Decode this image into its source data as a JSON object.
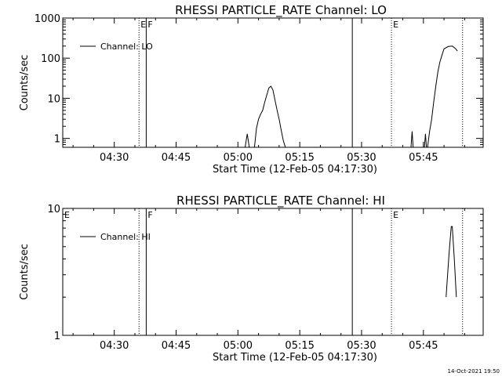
{
  "footer": {
    "timestamp": "14-Oct-2021 19:50"
  },
  "chart_data": [
    {
      "type": "line",
      "title": "RHESSI PARTICLE_RATE Channel: LO",
      "xlabel": "Start Time (12-Feb-05 04:17:30)",
      "ylabel": "Counts/sec",
      "yscale": "log",
      "xlim": [
        "04:17:30",
        "05:59:30"
      ],
      "ylim": [
        0.6,
        1000
      ],
      "xticks": [
        "04:30",
        "04:45",
        "05:00",
        "05:15",
        "05:30",
        "05:45"
      ],
      "yticks": [
        {
          "value": 1,
          "label": "1"
        },
        {
          "value": 10,
          "label": "10"
        },
        {
          "value": 100,
          "label": "100"
        },
        {
          "value": 1000,
          "label": "1000"
        }
      ],
      "legend": {
        "position": "top-left",
        "entries": [
          "Channel: LO"
        ]
      },
      "markers": [
        {
          "time": "04:36:00",
          "style": "dotted",
          "label": "E"
        },
        {
          "time": "04:37:45",
          "style": "solid",
          "label": "F"
        },
        {
          "time": "05:27:45",
          "style": "solid",
          "label": ""
        },
        {
          "time": "05:37:15",
          "style": "dotted",
          "label": "E"
        },
        {
          "time": "05:54:30",
          "style": "dotted",
          "label": ""
        }
      ],
      "series": [
        {
          "name": "Channel: LO",
          "segments": [
            [
              [
                "05:01:45",
                0.6
              ],
              [
                "05:02:15",
                1.3
              ],
              [
                "05:02:45",
                0.6
              ]
            ],
            [
              [
                "05:04:00",
                0.6
              ],
              [
                "05:04:30",
                1.8
              ],
              [
                "05:05:00",
                3
              ],
              [
                "05:05:30",
                4
              ],
              [
                "05:06:00",
                5
              ],
              [
                "05:06:30",
                8
              ],
              [
                "05:07:00",
                12
              ],
              [
                "05:07:30",
                18
              ],
              [
                "05:08:00",
                20
              ],
              [
                "05:08:30",
                16
              ],
              [
                "05:09:00",
                9
              ],
              [
                "05:09:30",
                5
              ],
              [
                "05:10:00",
                3
              ],
              [
                "05:10:30",
                1.6
              ],
              [
                "05:11:00",
                0.9
              ],
              [
                "05:11:30",
                0.6
              ]
            ],
            [
              [
                "05:42:00",
                0.6
              ],
              [
                "05:42:15",
                1.5
              ],
              [
                "05:42:30",
                0.6
              ]
            ],
            [
              [
                "05:45:15",
                0.6
              ],
              [
                "05:45:30",
                1.3
              ],
              [
                "05:45:45",
                0.6
              ]
            ],
            [
              [
                "05:46:00",
                0.6
              ],
              [
                "05:46:30",
                1.5
              ],
              [
                "05:47:00",
                3
              ],
              [
                "05:47:30",
                8
              ],
              [
                "05:48:00",
                20
              ],
              [
                "05:48:30",
                45
              ],
              [
                "05:49:00",
                80
              ],
              [
                "05:49:30",
                120
              ],
              [
                "05:50:00",
                170
              ],
              [
                "05:51:00",
                195
              ],
              [
                "05:52:00",
                200
              ],
              [
                "05:52:45",
                175
              ],
              [
                "05:53:15",
                150
              ]
            ]
          ]
        }
      ]
    },
    {
      "type": "line",
      "title": "RHESSI PARTICLE_RATE Channel: HI",
      "xlabel": "Start Time (12-Feb-05 04:17:30)",
      "ylabel": "Counts/sec",
      "yscale": "log",
      "xlim": [
        "04:17:30",
        "05:59:30"
      ],
      "ylim": [
        1,
        10
      ],
      "xticks": [
        "04:30",
        "04:45",
        "05:00",
        "05:15",
        "05:30",
        "05:45"
      ],
      "yticks": [
        {
          "value": 1,
          "label": "1"
        },
        {
          "value": 10,
          "label": "10"
        }
      ],
      "legend": {
        "position": "top-left",
        "entries": [
          "Channel: HI"
        ]
      },
      "markers": [
        {
          "time": "04:17:30",
          "style": "none",
          "label": "E"
        },
        {
          "time": "04:36:00",
          "style": "dotted",
          "label": ""
        },
        {
          "time": "04:37:45",
          "style": "solid",
          "label": "F"
        },
        {
          "time": "05:27:45",
          "style": "solid",
          "label": ""
        },
        {
          "time": "05:37:15",
          "style": "dotted",
          "label": "E"
        },
        {
          "time": "05:54:30",
          "style": "dotted",
          "label": ""
        }
      ],
      "series": [
        {
          "name": "Channel: HI",
          "segments": [
            [
              [
                "05:50:30",
                2
              ],
              [
                "05:51:15",
                4.5
              ],
              [
                "05:51:45",
                7.2
              ],
              [
                "05:52:00",
                7.2
              ],
              [
                "05:52:30",
                4
              ],
              [
                "05:53:00",
                2
              ]
            ]
          ]
        }
      ]
    }
  ]
}
